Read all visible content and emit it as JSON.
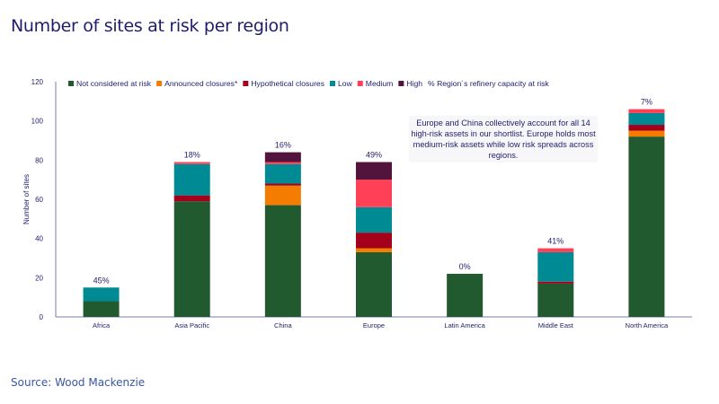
{
  "title": "Number of sites at risk per region",
  "source": "Source: Wood Mackenzie",
  "chart_data": {
    "type": "bar",
    "stacked": true,
    "ylabel": "Number of sites",
    "ylim": [
      0,
      120
    ],
    "yticks": [
      0,
      20,
      40,
      60,
      80,
      100,
      120
    ],
    "grid": false,
    "legend_position": "top",
    "categories": [
      "Africa",
      "Asia Pacific",
      "China",
      "Europe",
      "Latin America",
      "Middle East",
      "North America"
    ],
    "series": [
      {
        "name": "Not considered at risk",
        "color": "#215a2f",
        "values": [
          8,
          59,
          57,
          33,
          22,
          17,
          92
        ]
      },
      {
        "name": "Announced closures*",
        "color": "#f47c00",
        "values": [
          0,
          0,
          10,
          2,
          0,
          0,
          3
        ]
      },
      {
        "name": "Hypothetical closures",
        "color": "#a5001b",
        "values": [
          0,
          3,
          1,
          8,
          0,
          1,
          3
        ]
      },
      {
        "name": "Low",
        "color": "#008b94",
        "values": [
          7,
          16,
          10,
          13,
          0,
          15,
          6
        ]
      },
      {
        "name": "Medium",
        "color": "#ff4057",
        "values": [
          0,
          1,
          1,
          14,
          0,
          2,
          2
        ]
      },
      {
        "name": "High",
        "color": "#52143d",
        "values": [
          0,
          0,
          5,
          9,
          0,
          0,
          0
        ]
      }
    ],
    "pct_label_name": "% Region´s refinery capacity at risk",
    "pct_labels": [
      "45%",
      "18%",
      "16%",
      "49%",
      "0%",
      "41%",
      "7%"
    ],
    "annotation": "Europe and China collectively account for all 14 high-risk assets in our shortlist. Europe holds most medium-risk assets while low risk spreads across regions."
  }
}
